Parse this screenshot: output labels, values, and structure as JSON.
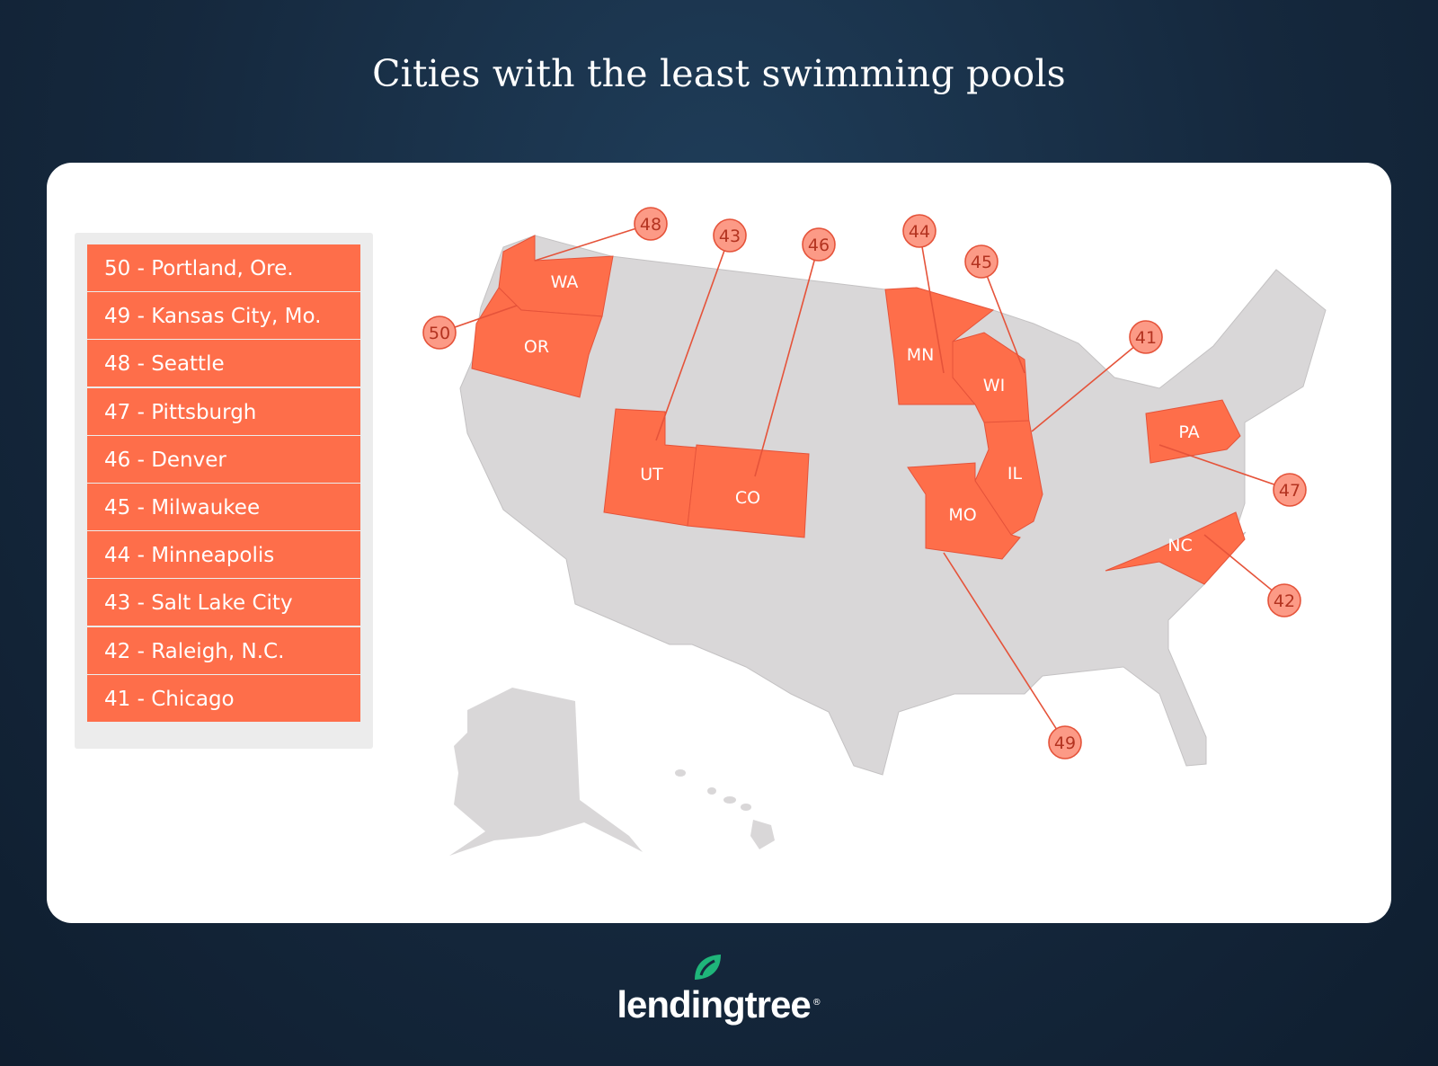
{
  "title": "Cities with the least swimming pools",
  "legend": [
    "50 - Portland, Ore.",
    "49 - Kansas City, Mo.",
    "48 - Seattle",
    "47 - Pittsburgh",
    "46 - Denver",
    "45 - Milwaukee",
    "44 - Minneapolis",
    "43 - Salt Lake City",
    "42 - Raleigh, N.C.",
    "41 - Chicago"
  ],
  "states": [
    {
      "abbr": "WA",
      "rank": "48"
    },
    {
      "abbr": "OR",
      "rank": "50"
    },
    {
      "abbr": "UT",
      "rank": "43"
    },
    {
      "abbr": "CO",
      "rank": "46"
    },
    {
      "abbr": "MN",
      "rank": "44"
    },
    {
      "abbr": "WI",
      "rank": "45"
    },
    {
      "abbr": "IL",
      "rank": "41"
    },
    {
      "abbr": "MO",
      "rank": "49"
    },
    {
      "abbr": "PA",
      "rank": "47"
    },
    {
      "abbr": "NC",
      "rank": "42"
    }
  ],
  "colors": {
    "highlight": "#fe6e4a",
    "base_state": "#d9d7d8",
    "callout_fill": "#fc9a86",
    "callout_stroke": "#e5533a",
    "brand_leaf": "#1fb57a"
  },
  "logo": {
    "text": "lendingtree",
    "reg": "®"
  }
}
